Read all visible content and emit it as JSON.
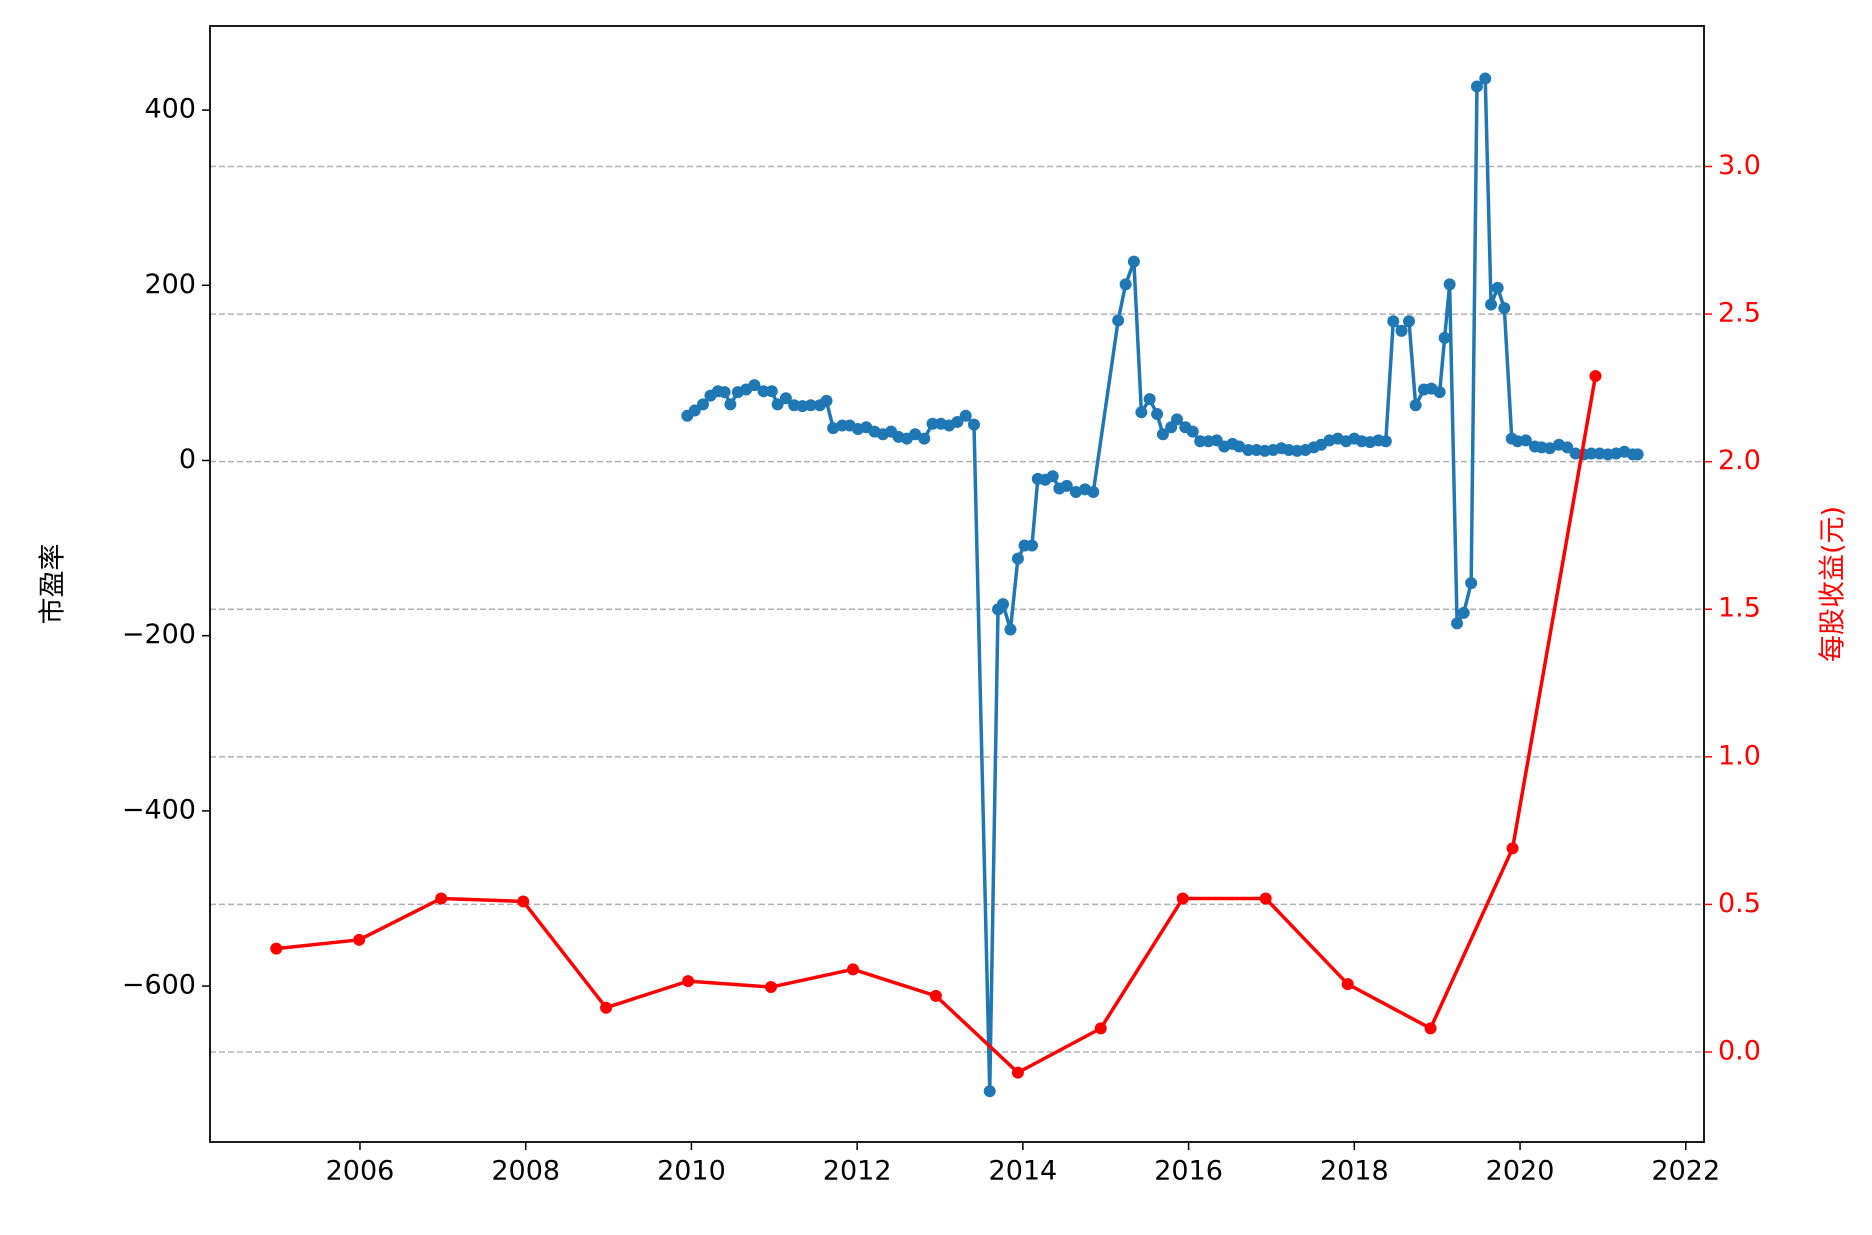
{
  "chart_data": {
    "type": "line",
    "ylabel": "市盈率",
    "y2label": "每股收益(元)",
    "xlim": [
      2004.19,
      2022.22
    ],
    "xticks": [
      2006,
      2008,
      2010,
      2012,
      2014,
      2016,
      2018,
      2020,
      2022
    ],
    "ylim": [
      -778,
      496
    ],
    "yticks": [
      {
        "value": -600,
        "label": "−600"
      },
      {
        "value": -400,
        "label": "−400"
      },
      {
        "value": -200,
        "label": "−200"
      },
      0,
      200,
      400
    ],
    "y2lim": [
      -0.305,
      3.476
    ],
    "y2ticks": [
      {
        "value": 0,
        "label": "0.0"
      },
      0.5,
      {
        "value": 1,
        "label": "1.0"
      },
      1.5,
      {
        "value": 2,
        "label": "2.0"
      },
      2.5,
      {
        "value": 3,
        "label": "3.0"
      }
    ],
    "y2color": "#ff0000",
    "grid": "y2",
    "series": [
      {
        "color": "#1f77b4",
        "axis": "y",
        "x": [
          2009.95,
          2010.04,
          2010.14,
          2010.23,
          2010.32,
          2010.4,
          2010.47,
          2010.56,
          2010.66,
          2010.76,
          2010.87,
          2010.97,
          2011.04,
          2011.14,
          2011.24,
          2011.34,
          2011.44,
          2011.55,
          2011.63,
          2011.71,
          2011.82,
          2011.91,
          2012.01,
          2012.11,
          2012.21,
          2012.31,
          2012.41,
          2012.5,
          2012.6,
          2012.7,
          2012.81,
          2012.91,
          2013.01,
          2013.11,
          2013.21,
          2013.31,
          2013.41,
          2013.6,
          2013.7,
          2013.76,
          2013.85,
          2013.94,
          2014.02,
          2014.11,
          2014.18,
          2014.27,
          2014.36,
          2014.44,
          2014.53,
          2014.64,
          2014.75,
          2014.85,
          2015.15,
          2015.24,
          2015.34,
          2015.43,
          2015.53,
          2015.62,
          2015.69,
          2015.79,
          2015.86,
          2015.96,
          2016.05,
          2016.14,
          2016.24,
          2016.34,
          2016.43,
          2016.53,
          2016.61,
          2016.72,
          2016.82,
          2016.92,
          2017.02,
          2017.12,
          2017.21,
          2017.31,
          2017.41,
          2017.51,
          2017.6,
          2017.7,
          2017.8,
          2017.9,
          2018.0,
          2018.09,
          2018.19,
          2018.29,
          2018.38,
          2018.47,
          2018.57,
          2018.66,
          2018.74,
          2018.84,
          2018.93,
          2019.03,
          2019.09,
          2019.15,
          2019.24,
          2019.32,
          2019.41,
          2019.48,
          2019.58,
          2019.65,
          2019.73,
          2019.81,
          2019.9,
          2019.97,
          2020.07,
          2020.18,
          2020.26,
          2020.36,
          2020.47,
          2020.57,
          2020.67,
          2020.77,
          2020.86,
          2020.96,
          2021.06,
          2021.16,
          2021.26,
          2021.36,
          2021.42
        ],
        "values": [
          51,
          57,
          64,
          74,
          79,
          78,
          64,
          78,
          81,
          86,
          79,
          79,
          64,
          71,
          63,
          62,
          63,
          63,
          68,
          37,
          40,
          40,
          36,
          38,
          33,
          30,
          33,
          27,
          25,
          30,
          25,
          42,
          42,
          40,
          44,
          51,
          41,
          -720,
          -170,
          -164,
          -193,
          -112,
          -97,
          -97,
          -21,
          -22,
          -18,
          -32,
          -29,
          -36,
          -33,
          -36,
          160,
          201,
          227,
          55,
          70,
          53,
          30,
          38,
          47,
          38,
          33,
          22,
          22,
          23,
          16,
          19,
          16,
          12,
          12,
          11,
          12,
          14,
          12,
          11,
          12,
          15,
          18,
          23,
          25,
          22,
          25,
          22,
          21,
          23,
          22,
          159,
          148,
          159,
          63,
          81,
          82,
          78,
          140,
          201,
          -186,
          -174,
          -140,
          427,
          436,
          178,
          197,
          174,
          25,
          22,
          23,
          16,
          15,
          14,
          18,
          15,
          8,
          7,
          8,
          8,
          7,
          8,
          10,
          7,
          7
        ]
      },
      {
        "color": "#ff0000",
        "axis": "y2",
        "x": [
          2004.99,
          2005.99,
          2006.98,
          2007.97,
          2008.97,
          2009.96,
          2010.96,
          2011.95,
          2012.95,
          2013.94,
          2014.94,
          2015.93,
          2016.93,
          2017.92,
          2018.92,
          2019.91,
          2020.91
        ],
        "values": [
          0.35,
          0.38,
          0.52,
          0.51,
          0.15,
          0.24,
          0.22,
          0.28,
          0.19,
          -0.07,
          0.08,
          0.52,
          0.52,
          0.23,
          0.08,
          0.69,
          2.29
        ]
      }
    ]
  }
}
